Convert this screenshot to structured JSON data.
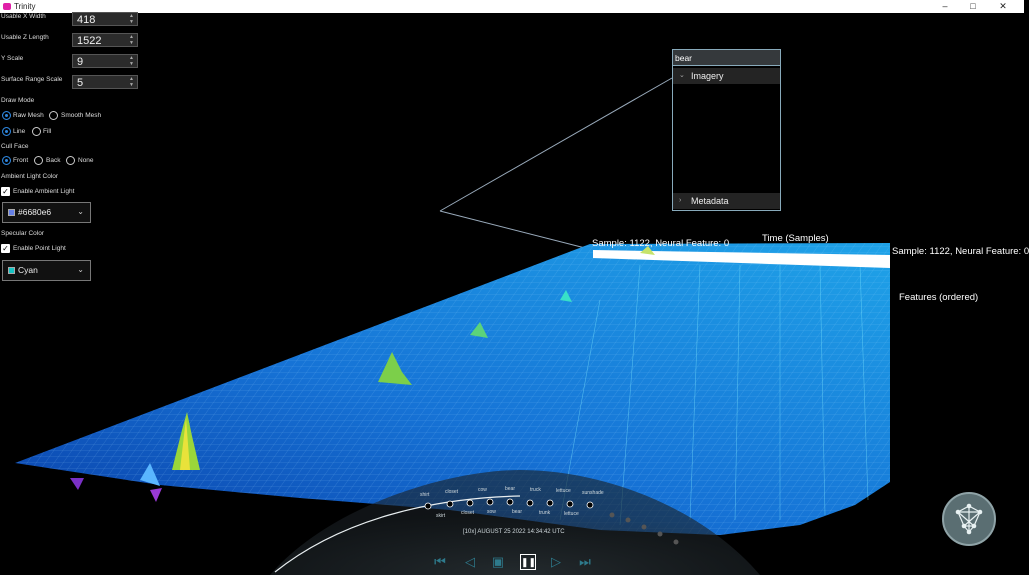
{
  "window": {
    "title": "Trinity",
    "controls": [
      "–",
      "□",
      "✕"
    ]
  },
  "panel": {
    "usable_x_width": {
      "label": "Usable X Width",
      "value": "418"
    },
    "usable_z_length": {
      "label": "Usable Z Length",
      "value": "1522"
    },
    "y_scale": {
      "label": "Y Scale",
      "value": "9"
    },
    "surface_range_scale": {
      "label": "Surface Range Scale",
      "value": "5"
    },
    "draw_mode": {
      "label": "Draw Mode",
      "options": [
        "Raw Mesh",
        "Smooth Mesh",
        "Line",
        "Fill"
      ],
      "selected": [
        "Raw Mesh",
        "Line"
      ]
    },
    "cull_face": {
      "label": "Cull Face",
      "options": [
        "Front",
        "Back",
        "None"
      ],
      "selected": "Front"
    },
    "ambient": {
      "label": "Ambient Light Color",
      "checkbox_label": "Enable Ambient Light",
      "checked": true,
      "color_text": "#6680e6",
      "swatch": "#6680e6"
    },
    "specular": {
      "label": "Specular Color",
      "checkbox_label": "Enable Point Light",
      "checked": true,
      "color_text": "Cyan",
      "swatch": "#17c3c3"
    }
  },
  "popup": {
    "search_text": "bear",
    "imagery_label": "Imagery",
    "metadata_label": "Metadata"
  },
  "scene": {
    "label_sample_left": "Sample: 1122, Neural Feature: 0",
    "label_time_axis": "Time (Samples)",
    "label_sample_right": "Sample: 1122, Neural Feature: 0",
    "label_features_axis": "Features (ordered)"
  },
  "timeline": {
    "timestamp": "[10x] AUGUST 25 2022 14:34:42 UTC",
    "upper_labels": [
      "shirt",
      "closet",
      "cow",
      "bear",
      "truck",
      "lettuce",
      "sunshade"
    ],
    "lower_labels": [
      "skirt",
      "closet",
      "sow",
      "bear",
      "trunk",
      "lettuce"
    ],
    "buttons": [
      "skip-back",
      "step-back",
      "stop",
      "pause",
      "play",
      "skip-forward"
    ]
  },
  "colors": {
    "accent_blue": "#2e86de",
    "mesh_blue": "#1a7fd8",
    "playback": "#2e7a8c"
  }
}
